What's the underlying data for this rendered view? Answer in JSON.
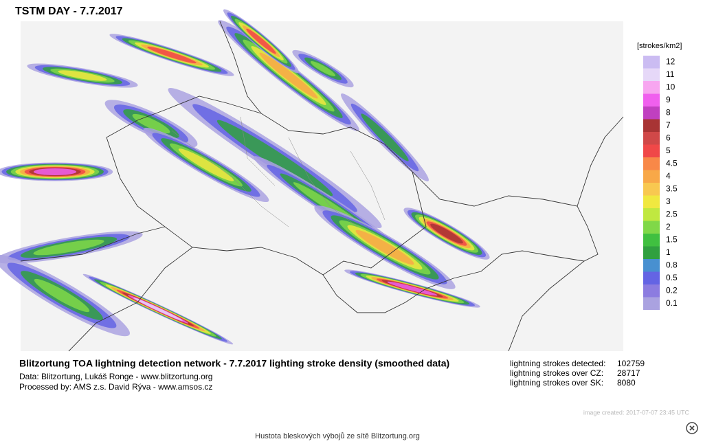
{
  "header": {
    "title": "TSTM DAY - 7.7.2017"
  },
  "legend": {
    "unit": "[strokes/km2]",
    "items": [
      {
        "label": "12",
        "color": "#cbbcf2"
      },
      {
        "label": "11",
        "color": "#e6d8f8"
      },
      {
        "label": "10",
        "color": "#f7a6f0"
      },
      {
        "label": "9",
        "color": "#f060ee"
      },
      {
        "label": "8",
        "color": "#c040c0"
      },
      {
        "label": "7",
        "color": "#a83434"
      },
      {
        "label": "6",
        "color": "#d04848"
      },
      {
        "label": "5",
        "color": "#f04848"
      },
      {
        "label": "4.5",
        "color": "#f88848"
      },
      {
        "label": "4",
        "color": "#f8a848"
      },
      {
        "label": "3.5",
        "color": "#f8c850"
      },
      {
        "label": "3",
        "color": "#f0e840"
      },
      {
        "label": "2.5",
        "color": "#c0e840"
      },
      {
        "label": "2",
        "color": "#80d848"
      },
      {
        "label": "1.5",
        "color": "#40c040"
      },
      {
        "label": "1",
        "color": "#30a040"
      },
      {
        "label": "0.8",
        "color": "#4890d0"
      },
      {
        "label": "0.5",
        "color": "#6464e4"
      },
      {
        "label": "0.2",
        "color": "#8c7ce0"
      },
      {
        "label": "0.1",
        "color": "#aaa2e0"
      }
    ]
  },
  "caption": {
    "title": "Blitzortung TOA lightning detection network - 7.7.2017  lighting stroke density (smoothed data)",
    "lines": [
      "Data: Blitzortung, Lukáš Ronge - www.blitzortung.org",
      "Processed by: AMS z.s. David Rýva - www.amsos.cz"
    ]
  },
  "stats": [
    {
      "label": "lightning strokes detected:",
      "value": 102759
    },
    {
      "label": "lightning strokes over CZ:",
      "value": 28717
    },
    {
      "label": "lightning strokes over SK:",
      "value": 8080
    }
  ],
  "created": "image created: 2017-07-07 23:45 UTC",
  "footer": "Hustota bleskových výbojů ze sítě Blitzortung.org"
}
